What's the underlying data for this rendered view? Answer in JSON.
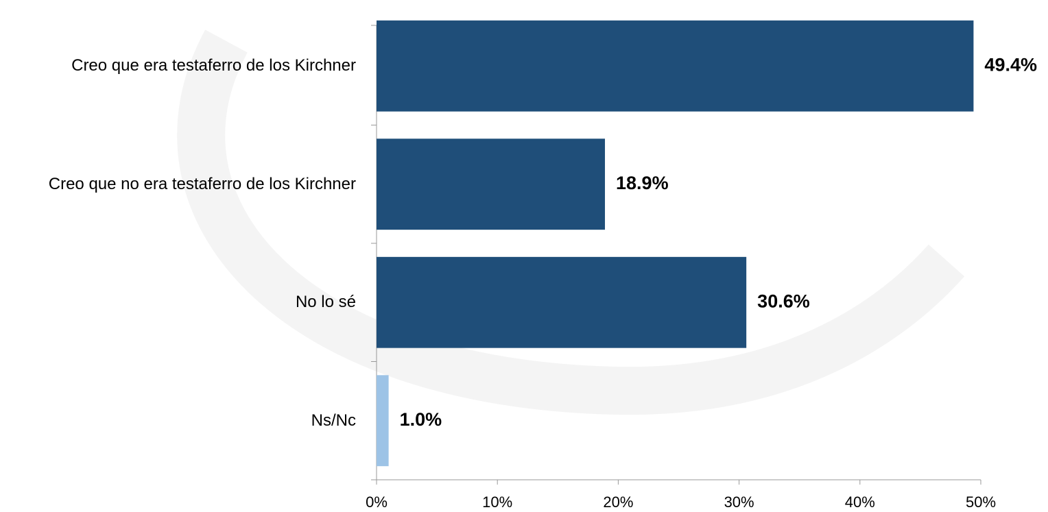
{
  "chart_data": {
    "type": "barh",
    "categories": [
      "Creo que era testaferro de los Kirchner",
      "Creo que no era testaferro de los Kirchner",
      "No lo sé",
      "Ns/Nc"
    ],
    "values": [
      49.4,
      18.9,
      30.6,
      1.0
    ],
    "value_labels": [
      "49.4%",
      "18.9%",
      "30.6%",
      "1.0%"
    ],
    "colors": [
      "#1f4e79",
      "#1f4e79",
      "#1f4e79",
      "#9dc3e6"
    ],
    "xlim": [
      0,
      50
    ],
    "xticks": [
      {
        "value": 0,
        "label": "0%"
      },
      {
        "value": 10,
        "label": "10%"
      },
      {
        "value": 20,
        "label": "20%"
      },
      {
        "value": 30,
        "label": "30%"
      },
      {
        "value": 40,
        "label": "40%"
      },
      {
        "value": 50,
        "label": "50%"
      }
    ],
    "grid": false
  }
}
